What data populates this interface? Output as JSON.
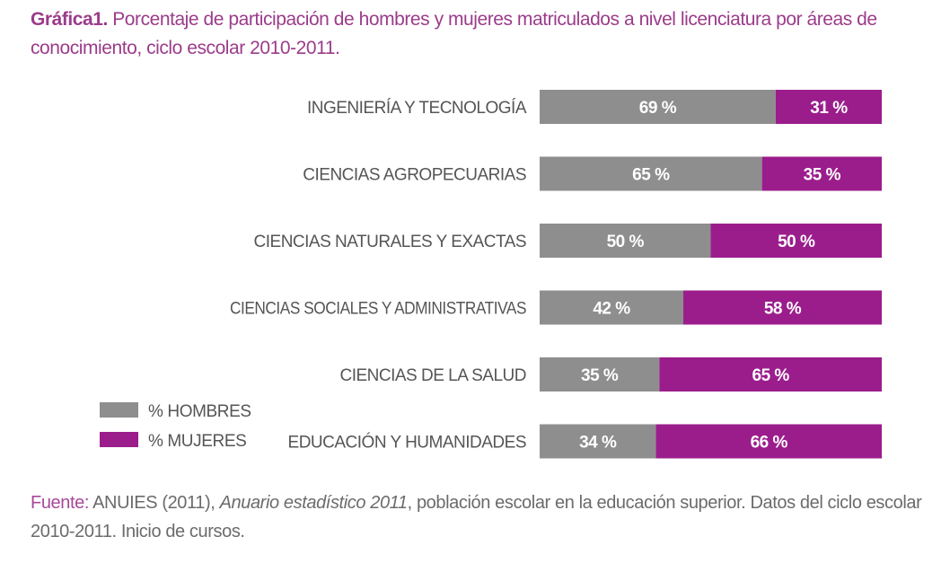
{
  "title": {
    "prefix": "Gráfica1.",
    "text": "Porcentaje de participación de hombres y mujeres matriculados a nivel licenciatura por áreas de conocimiento, ciclo escolar 2010-2011."
  },
  "source": {
    "label": "Fuente:",
    "text_before": "ANUIES (2011),",
    "italic": "Anuario estadístico 2011",
    "text_after": ", población escolar en la educación superior. Datos del ciclo escolar 2010-2011. Inicio de cursos."
  },
  "colors": {
    "hombres": "#8e8e8f",
    "mujeres": "#9b1d8c",
    "category_text": "#555555",
    "bar_label": "#ffffff"
  },
  "chart_data": {
    "type": "bar",
    "orientation": "horizontal",
    "stacked": true,
    "normalized_percent": true,
    "categories": [
      "INGENIERÍA Y TECNOLOGÍA",
      "CIENCIAS AGROPECUARIAS",
      "CIENCIAS NATURALES Y EXACTAS",
      "CIENCIAS SOCIALES Y ADMINISTRATIVAS",
      "CIENCIAS DE LA SALUD",
      "EDUCACIÓN Y HUMANIDADES"
    ],
    "series": [
      {
        "name": "% HOMBRES",
        "values": [
          69,
          65,
          50,
          42,
          35,
          34
        ],
        "labels": [
          "69 %",
          "65 %",
          "50 %",
          "42 %",
          "35 %",
          "34 %"
        ]
      },
      {
        "name": "% MUJERES",
        "values": [
          31,
          35,
          50,
          58,
          65,
          66
        ],
        "labels": [
          "31 %",
          "35 %",
          "50 %",
          "58 %",
          "65 %",
          "66 %"
        ]
      }
    ],
    "legend_position": "bottom-left",
    "grid": false
  }
}
